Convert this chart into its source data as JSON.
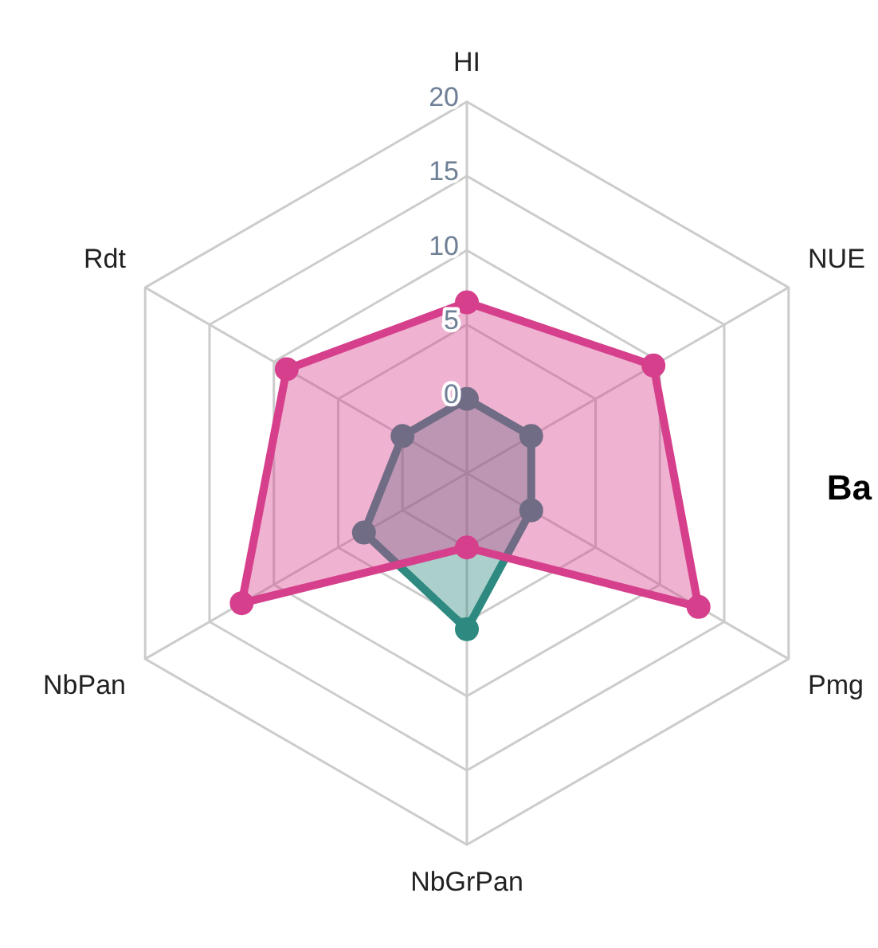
{
  "chart_data": {
    "type": "radar",
    "categories": [
      "HI",
      "NUE",
      "Pmg",
      "NbGrPan",
      "NbPan",
      "Rdt"
    ],
    "series": [
      {
        "color": "#d63f8c",
        "values": [
          6.5,
          9.5,
          13,
          0,
          12.5,
          9
        ]
      },
      {
        "color": "#2e8a80",
        "values": [
          0,
          0,
          0,
          5.5,
          3,
          0
        ]
      }
    ],
    "ylim": [
      -5,
      20
    ],
    "yticks": [
      0,
      5,
      10,
      15,
      20
    ],
    "grid": true,
    "legend": false,
    "marker": "circle",
    "annotations": [
      "Ba"
    ]
  }
}
